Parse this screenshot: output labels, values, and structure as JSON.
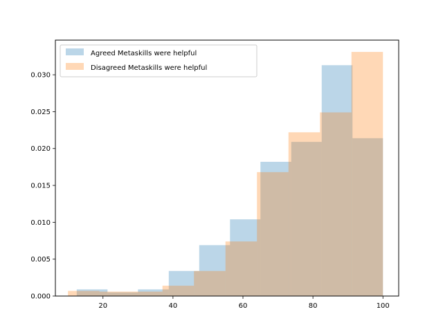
{
  "chart_data": {
    "type": "histogram",
    "title": "",
    "xlabel": "",
    "ylabel": "",
    "xlim": [
      6.4,
      104.5
    ],
    "ylim": [
      0,
      0.0347
    ],
    "xticks": [
      20,
      40,
      60,
      80,
      100
    ],
    "xtick_labels": [
      "20",
      "40",
      "60",
      "80",
      "100"
    ],
    "yticks": [
      0.0,
      0.005,
      0.01,
      0.015,
      0.02,
      0.025,
      0.03
    ],
    "ytick_labels": [
      "0.000",
      "0.005",
      "0.010",
      "0.015",
      "0.020",
      "0.025",
      "0.030"
    ],
    "grid": false,
    "legend_position": "upper-left",
    "series": [
      {
        "name": "Agreed Metaskills were helpful",
        "color": "#1f77b4",
        "opacity": 0.3,
        "bins": [
          {
            "x0": 12.5,
            "x1": 21.3,
            "density": 0.0009
          },
          {
            "x0": 21.3,
            "x1": 30.0,
            "density": 0.0005
          },
          {
            "x0": 30.0,
            "x1": 38.8,
            "density": 0.0009
          },
          {
            "x0": 38.8,
            "x1": 47.5,
            "density": 0.0034
          },
          {
            "x0": 47.5,
            "x1": 56.3,
            "density": 0.0069
          },
          {
            "x0": 56.3,
            "x1": 65.0,
            "density": 0.0104
          },
          {
            "x0": 65.0,
            "x1": 73.8,
            "density": 0.0182
          },
          {
            "x0": 73.8,
            "x1": 82.5,
            "density": 0.0209
          },
          {
            "x0": 82.5,
            "x1": 91.3,
            "density": 0.0313
          },
          {
            "x0": 91.3,
            "x1": 100.0,
            "density": 0.0214
          }
        ]
      },
      {
        "name": "Disagreed Metaskills were helpful",
        "color": "#ff7f0e",
        "opacity": 0.3,
        "bins": [
          {
            "x0": 10.0,
            "x1": 19.0,
            "density": 0.0007
          },
          {
            "x0": 19.0,
            "x1": 28.0,
            "density": 0.0006
          },
          {
            "x0": 28.0,
            "x1": 37.0,
            "density": 0.0006
          },
          {
            "x0": 37.0,
            "x1": 46.0,
            "density": 0.0014
          },
          {
            "x0": 46.0,
            "x1": 55.0,
            "density": 0.0034
          },
          {
            "x0": 55.0,
            "x1": 64.0,
            "density": 0.0074
          },
          {
            "x0": 64.0,
            "x1": 73.0,
            "density": 0.0168
          },
          {
            "x0": 73.0,
            "x1": 82.0,
            "density": 0.0222
          },
          {
            "x0": 82.0,
            "x1": 91.0,
            "density": 0.0249
          },
          {
            "x0": 91.0,
            "x1": 100.0,
            "density": 0.0331
          }
        ]
      }
    ]
  }
}
